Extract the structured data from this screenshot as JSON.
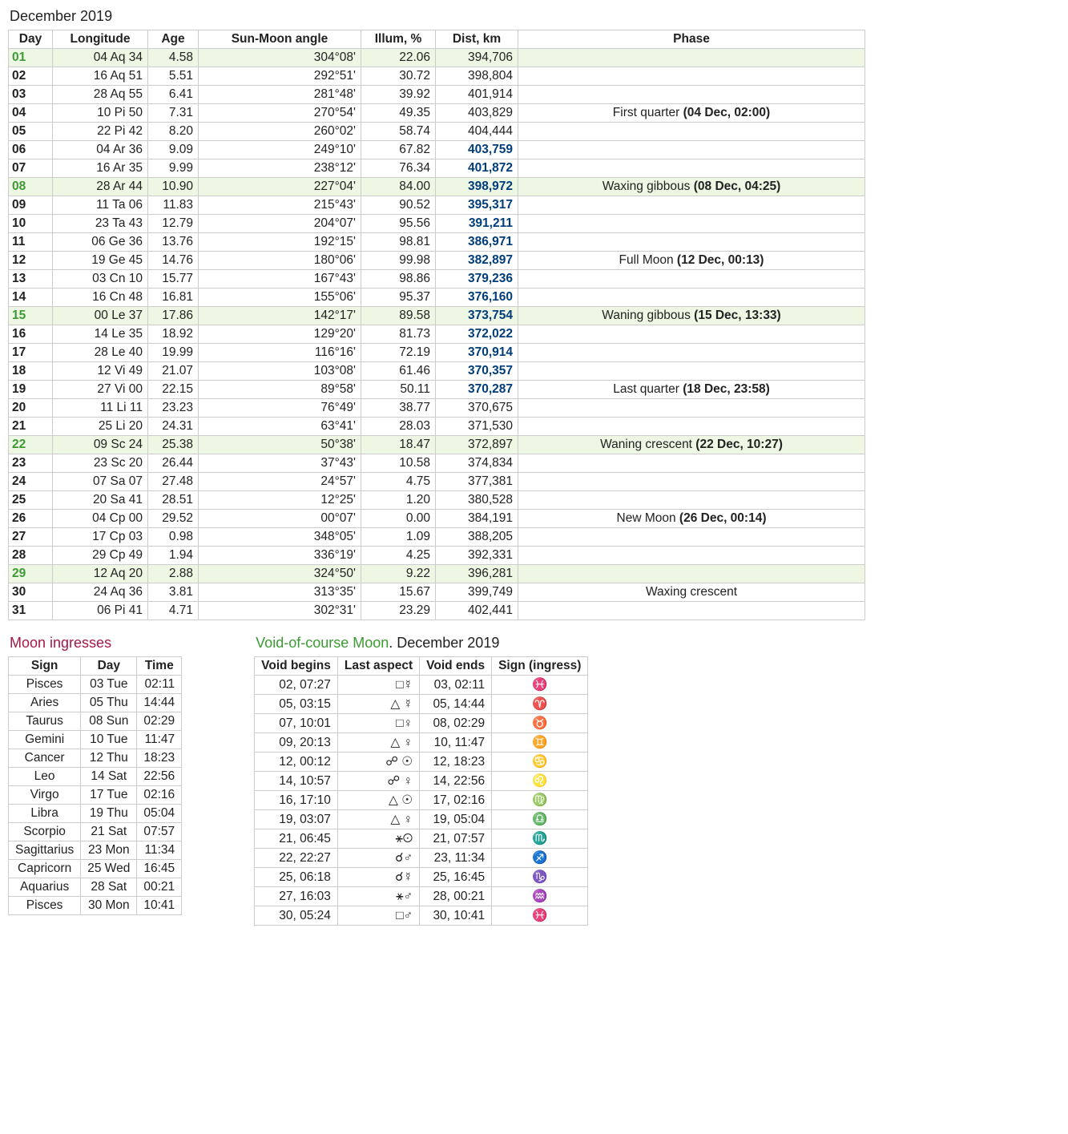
{
  "title": "December 2019",
  "columns": [
    "Day",
    "Longitude",
    "Age",
    "Sun-Moon angle",
    "Illum, %",
    "Dist, km",
    "Phase"
  ],
  "rows": [
    {
      "day": "01",
      "long": "04 Aq 34",
      "age": "4.58",
      "angle": "304°08'",
      "illum": "22.06",
      "dist": "394,706",
      "distBlue": false,
      "phase": "",
      "hl": true
    },
    {
      "day": "02",
      "long": "16 Aq 51",
      "age": "5.51",
      "angle": "292°51'",
      "illum": "30.72",
      "dist": "398,804",
      "distBlue": false,
      "phase": ""
    },
    {
      "day": "03",
      "long": "28 Aq 55",
      "age": "6.41",
      "angle": "281°48'",
      "illum": "39.92",
      "dist": "401,914",
      "distBlue": false,
      "phase": ""
    },
    {
      "day": "04",
      "long": "10 Pi 50",
      "age": "7.31",
      "angle": "270°54'",
      "illum": "49.35",
      "dist": "403,829",
      "distBlue": false,
      "phase": "First quarter",
      "phaseDate": "(04 Dec, 02:00)"
    },
    {
      "day": "05",
      "long": "22 Pi 42",
      "age": "8.20",
      "angle": "260°02'",
      "illum": "58.74",
      "dist": "404,444",
      "distBlue": false,
      "phase": ""
    },
    {
      "day": "06",
      "long": "04 Ar 36",
      "age": "9.09",
      "angle": "249°10'",
      "illum": "67.82",
      "dist": "403,759",
      "distBlue": true,
      "phase": ""
    },
    {
      "day": "07",
      "long": "16 Ar 35",
      "age": "9.99",
      "angle": "238°12'",
      "illum": "76.34",
      "dist": "401,872",
      "distBlue": true,
      "phase": ""
    },
    {
      "day": "08",
      "long": "28 Ar 44",
      "age": "10.90",
      "angle": "227°04'",
      "illum": "84.00",
      "dist": "398,972",
      "distBlue": true,
      "phase": "Waxing gibbous",
      "phaseDate": "(08 Dec, 04:25)",
      "hl": true
    },
    {
      "day": "09",
      "long": "11 Ta 06",
      "age": "11.83",
      "angle": "215°43'",
      "illum": "90.52",
      "dist": "395,317",
      "distBlue": true,
      "phase": ""
    },
    {
      "day": "10",
      "long": "23 Ta 43",
      "age": "12.79",
      "angle": "204°07'",
      "illum": "95.56",
      "dist": "391,211",
      "distBlue": true,
      "phase": ""
    },
    {
      "day": "11",
      "long": "06 Ge 36",
      "age": "13.76",
      "angle": "192°15'",
      "illum": "98.81",
      "dist": "386,971",
      "distBlue": true,
      "phase": ""
    },
    {
      "day": "12",
      "long": "19 Ge 45",
      "age": "14.76",
      "angle": "180°06'",
      "illum": "99.98",
      "dist": "382,897",
      "distBlue": true,
      "phase": "Full Moon",
      "phaseDate": "(12 Dec, 00:13)"
    },
    {
      "day": "13",
      "long": "03 Cn 10",
      "age": "15.77",
      "angle": "167°43'",
      "illum": "98.86",
      "dist": "379,236",
      "distBlue": true,
      "phase": ""
    },
    {
      "day": "14",
      "long": "16 Cn 48",
      "age": "16.81",
      "angle": "155°06'",
      "illum": "95.37",
      "dist": "376,160",
      "distBlue": true,
      "phase": ""
    },
    {
      "day": "15",
      "long": "00 Le 37",
      "age": "17.86",
      "angle": "142°17'",
      "illum": "89.58",
      "dist": "373,754",
      "distBlue": true,
      "phase": "Waning gibbous",
      "phaseDate": "(15 Dec, 13:33)",
      "hl": true
    },
    {
      "day": "16",
      "long": "14 Le 35",
      "age": "18.92",
      "angle": "129°20'",
      "illum": "81.73",
      "dist": "372,022",
      "distBlue": true,
      "phase": ""
    },
    {
      "day": "17",
      "long": "28 Le 40",
      "age": "19.99",
      "angle": "116°16'",
      "illum": "72.19",
      "dist": "370,914",
      "distBlue": true,
      "phase": ""
    },
    {
      "day": "18",
      "long": "12 Vi 49",
      "age": "21.07",
      "angle": "103°08'",
      "illum": "61.46",
      "dist": "370,357",
      "distBlue": true,
      "phase": ""
    },
    {
      "day": "19",
      "long": "27 Vi 00",
      "age": "22.15",
      "angle": "89°58'",
      "illum": "50.11",
      "dist": "370,287",
      "distBlue": true,
      "phase": "Last quarter",
      "phaseDate": "(18 Dec, 23:58)"
    },
    {
      "day": "20",
      "long": "11 Li 11",
      "age": "23.23",
      "angle": "76°49'",
      "illum": "38.77",
      "dist": "370,675",
      "distBlue": false,
      "phase": ""
    },
    {
      "day": "21",
      "long": "25 Li 20",
      "age": "24.31",
      "angle": "63°41'",
      "illum": "28.03",
      "dist": "371,530",
      "distBlue": false,
      "phase": ""
    },
    {
      "day": "22",
      "long": "09 Sc 24",
      "age": "25.38",
      "angle": "50°38'",
      "illum": "18.47",
      "dist": "372,897",
      "distBlue": false,
      "phase": "Waning crescent",
      "phaseDate": "(22 Dec, 10:27)",
      "hl": true
    },
    {
      "day": "23",
      "long": "23 Sc 20",
      "age": "26.44",
      "angle": "37°43'",
      "illum": "10.58",
      "dist": "374,834",
      "distBlue": false,
      "phase": ""
    },
    {
      "day": "24",
      "long": "07 Sa 07",
      "age": "27.48",
      "angle": "24°57'",
      "illum": "4.75",
      "dist": "377,381",
      "distBlue": false,
      "phase": ""
    },
    {
      "day": "25",
      "long": "20 Sa 41",
      "age": "28.51",
      "angle": "12°25'",
      "illum": "1.20",
      "dist": "380,528",
      "distBlue": false,
      "phase": ""
    },
    {
      "day": "26",
      "long": "04 Cp 00",
      "age": "29.52",
      "angle": "00°07'",
      "illum": "0.00",
      "dist": "384,191",
      "distBlue": false,
      "phase": "New Moon",
      "phaseDate": "(26 Dec, 00:14)"
    },
    {
      "day": "27",
      "long": "17 Cp 03",
      "age": "0.98",
      "angle": "348°05'",
      "illum": "1.09",
      "dist": "388,205",
      "distBlue": false,
      "phase": ""
    },
    {
      "day": "28",
      "long": "29 Cp 49",
      "age": "1.94",
      "angle": "336°19'",
      "illum": "4.25",
      "dist": "392,331",
      "distBlue": false,
      "phase": ""
    },
    {
      "day": "29",
      "long": "12 Aq 20",
      "age": "2.88",
      "angle": "324°50'",
      "illum": "9.22",
      "dist": "396,281",
      "distBlue": false,
      "phase": "",
      "hl": true
    },
    {
      "day": "30",
      "long": "24 Aq 36",
      "age": "3.81",
      "angle": "313°35'",
      "illum": "15.67",
      "dist": "399,749",
      "distBlue": false,
      "phase": "Waxing crescent"
    },
    {
      "day": "31",
      "long": "06 Pi 41",
      "age": "4.71",
      "angle": "302°31'",
      "illum": "23.29",
      "dist": "402,441",
      "distBlue": false,
      "phase": ""
    }
  ],
  "ingress": {
    "title": "Moon ingresses",
    "columns": [
      "Sign",
      "Day",
      "Time"
    ],
    "rows": [
      {
        "sign": "Pisces",
        "day": "03 Tue",
        "time": "02:11"
      },
      {
        "sign": "Aries",
        "day": "05 Thu",
        "time": "14:44"
      },
      {
        "sign": "Taurus",
        "day": "08 Sun",
        "time": "02:29"
      },
      {
        "sign": "Gemini",
        "day": "10 Tue",
        "time": "11:47"
      },
      {
        "sign": "Cancer",
        "day": "12 Thu",
        "time": "18:23"
      },
      {
        "sign": "Leo",
        "day": "14 Sat",
        "time": "22:56"
      },
      {
        "sign": "Virgo",
        "day": "17 Tue",
        "time": "02:16"
      },
      {
        "sign": "Libra",
        "day": "19 Thu",
        "time": "05:04"
      },
      {
        "sign": "Scorpio",
        "day": "21 Sat",
        "time": "07:57"
      },
      {
        "sign": "Sagittarius",
        "day": "23 Mon",
        "time": "11:34"
      },
      {
        "sign": "Capricorn",
        "day": "25 Wed",
        "time": "16:45"
      },
      {
        "sign": "Aquarius",
        "day": "28 Sat",
        "time": "00:21"
      },
      {
        "sign": "Pisces",
        "day": "30 Mon",
        "time": "10:41"
      }
    ]
  },
  "voc": {
    "title": "Void-of-course Moon",
    "subtitle": ". December 2019",
    "columns": [
      "Void begins",
      "Last aspect",
      "Void ends",
      "Sign (ingress)"
    ],
    "rows": [
      {
        "begin": "02,  07:27",
        "aspect": "□☿",
        "end": "03, 02:11",
        "sign": "♓"
      },
      {
        "begin": "05,  03:15",
        "aspect": "△ ☿",
        "end": "05, 14:44",
        "sign": "♈"
      },
      {
        "begin": "07,  10:01",
        "aspect": "□♀",
        "end": "08, 02:29",
        "sign": "♉"
      },
      {
        "begin": "09,  20:13",
        "aspect": "△ ♀",
        "end": "10, 11:47",
        "sign": "♊"
      },
      {
        "begin": "12,  00:12",
        "aspect": "☍ ☉",
        "end": "12, 18:23",
        "sign": "♋"
      },
      {
        "begin": "14,  10:57",
        "aspect": "☍ ♀",
        "end": "14, 22:56",
        "sign": "♌"
      },
      {
        "begin": "16,  17:10",
        "aspect": "△ ☉",
        "end": "17, 02:16",
        "sign": "♍"
      },
      {
        "begin": "19,  03:07",
        "aspect": "△ ♀",
        "end": "19, 05:04",
        "sign": "♎"
      },
      {
        "begin": "21,  06:45",
        "aspect": "⚹☉",
        "end": "21, 07:57",
        "sign": "♏"
      },
      {
        "begin": "22,  22:27",
        "aspect": "☌♂",
        "end": "23, 11:34",
        "sign": "♐"
      },
      {
        "begin": "25,  06:18",
        "aspect": "☌☿",
        "end": "25, 16:45",
        "sign": "♑"
      },
      {
        "begin": "27,  16:03",
        "aspect": "⚹♂",
        "end": "28, 00:21",
        "sign": "♒"
      },
      {
        "begin": "30,  05:24",
        "aspect": "□♂",
        "end": "30, 10:41",
        "sign": "♓"
      }
    ]
  }
}
